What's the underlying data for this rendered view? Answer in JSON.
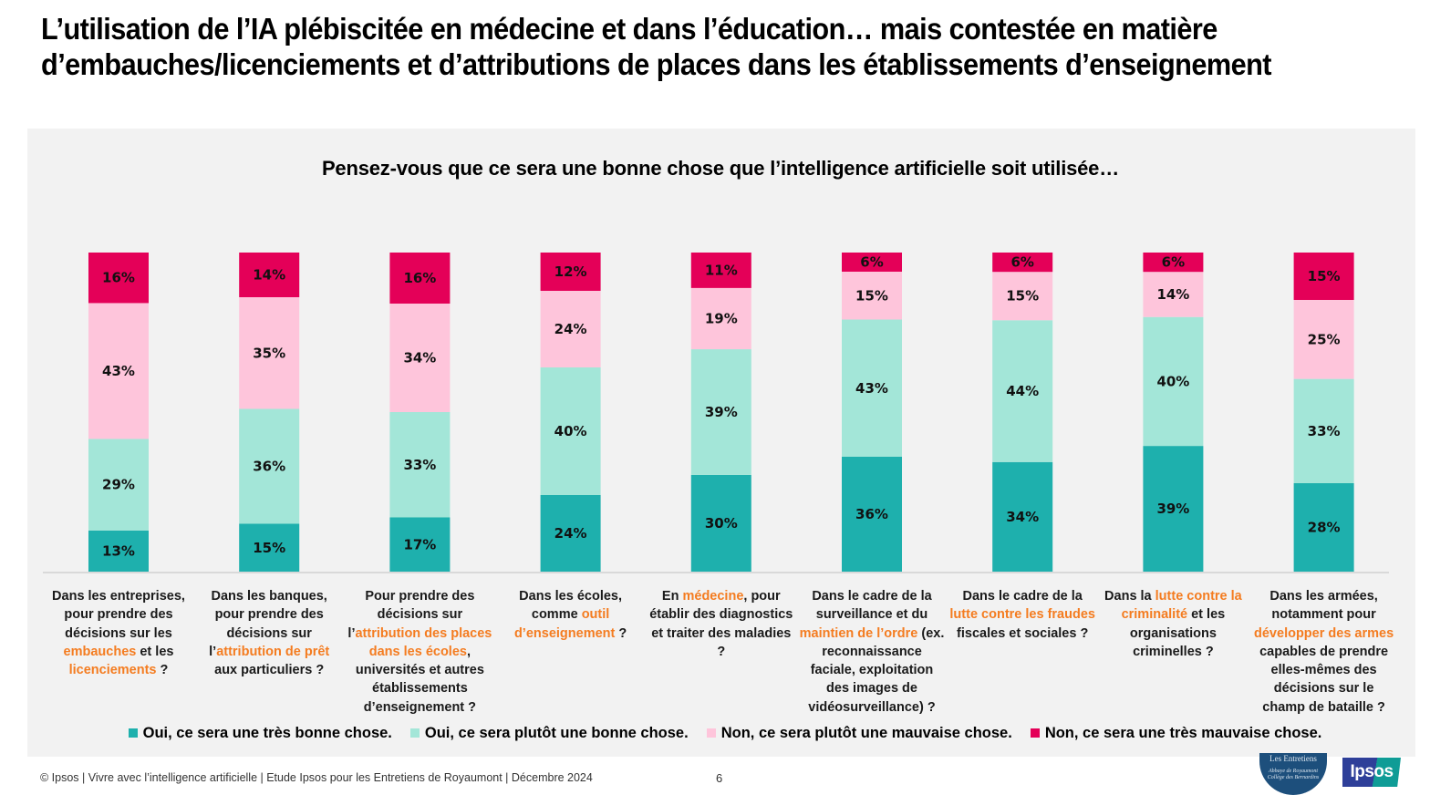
{
  "header": {
    "title": "L’utilisation de l’IA plébiscitée en médecine et dans l’éducation… mais contestée en matière d’embauches/licenciements et d’attributions de places dans les établissements d’enseignement"
  },
  "colors": {
    "tres_bonne": "#1eb0ad",
    "plutot_bonne": "#a3e6d8",
    "plutot_mauvaise": "#fec5db",
    "tres_mauvaise": "#e40058",
    "highlight": "#f47c20",
    "panel_bg": "#f2f2f2"
  },
  "chart_data": {
    "type": "bar",
    "stacked": true,
    "orientation": "vertical",
    "title": "Pensez-vous que ce sera une bonne chose que l’intelligence artificielle soit utilisée…",
    "xlabel": "",
    "ylabel": "",
    "ylim": [
      0,
      100
    ],
    "grid": false,
    "legend_position": "bottom",
    "categories": [
      [
        {
          "t": "Dans les entreprises, pour prendre des décisions sur les "
        },
        {
          "t": "embauches",
          "hl": true
        },
        {
          "t": " et les "
        },
        {
          "t": "licenciements",
          "hl": true
        },
        {
          "t": " ?"
        }
      ],
      [
        {
          "t": "Dans les banques, pour prendre des décisions sur l’"
        },
        {
          "t": "attribution de prêt",
          "hl": true
        },
        {
          "t": " aux particuliers ?"
        }
      ],
      [
        {
          "t": "Pour prendre des décisions sur l’"
        },
        {
          "t": "attribution des places dans les écoles",
          "hl": true
        },
        {
          "t": ", universités et autres établissements d’enseignement ?"
        }
      ],
      [
        {
          "t": "Dans les écoles, comme "
        },
        {
          "t": "outil d’enseignement",
          "hl": true
        },
        {
          "t": " ?"
        }
      ],
      [
        {
          "t": "En "
        },
        {
          "t": "médecine",
          "hl": true
        },
        {
          "t": ", pour établir des diagnostics et traiter des maladies ?"
        }
      ],
      [
        {
          "t": "Dans le cadre de la surveillance et du "
        },
        {
          "t": "maintien de l’ordre",
          "hl": true
        },
        {
          "t": " (ex. reconnaissance faciale, exploitation des images de vidéosurveillance) ?"
        }
      ],
      [
        {
          "t": "Dans le cadre de la "
        },
        {
          "t": "lutte contre les fraudes",
          "hl": true
        },
        {
          "t": " fiscales et sociales ?"
        }
      ],
      [
        {
          "t": "Dans la "
        },
        {
          "t": "lutte contre la criminalité",
          "hl": true
        },
        {
          "t": " et les organisations criminelles ?"
        }
      ],
      [
        {
          "t": "Dans les armées, notamment pour "
        },
        {
          "t": "développer des armes",
          "hl": true
        },
        {
          "t": " capables de prendre elles-mêmes des décisions sur le champ de bataille ?"
        }
      ]
    ],
    "series": [
      {
        "name": "Oui, ce sera une très bonne chose.",
        "color_key": "tres_bonne",
        "values": [
          13,
          15,
          17,
          24,
          30,
          36,
          34,
          39,
          28
        ]
      },
      {
        "name": "Oui, ce sera plutôt une bonne chose.",
        "color_key": "plutot_bonne",
        "values": [
          29,
          36,
          33,
          40,
          39,
          43,
          44,
          40,
          33
        ]
      },
      {
        "name": "Non, ce sera plutôt une mauvaise chose.",
        "color_key": "plutot_mauvaise",
        "values": [
          43,
          35,
          34,
          24,
          19,
          15,
          15,
          14,
          25
        ]
      },
      {
        "name": "Non, ce sera une très mauvaise chose.",
        "color_key": "tres_mauvaise",
        "values": [
          16,
          14,
          16,
          12,
          11,
          6,
          6,
          6,
          15
        ]
      }
    ],
    "value_suffix": "%"
  },
  "footer": {
    "source": "© Ipsos | Vivre avec l’intelligence artificielle | Etude Ipsos pour les Entretiens de Royaumont | Décembre 2024",
    "page": "6"
  },
  "logos": {
    "entretiens_title": "Les Entretiens",
    "entretiens_sub": "Abbaye de Royaumont Collège des Bernardins",
    "ipsos": "Ipsos"
  }
}
